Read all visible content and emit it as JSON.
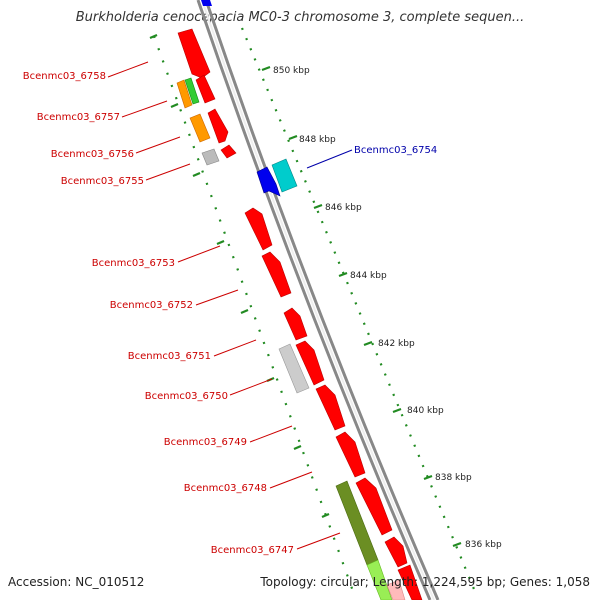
{
  "title": "Burkholderia cenocepacia MC0-3 chromosome 3, complete sequen...",
  "footer": {
    "accession": "Accession: NC_010512",
    "summary": "Topology: circular; Length: 1,224,595 bp; Genes: 1,058"
  },
  "colors": {
    "backbone": "#888888",
    "scale_ticks": "#228b22",
    "label_left": "#cc0000",
    "label_right": "#0000aa",
    "red": "#ff0000",
    "blue": "#0000ee",
    "cyan": "#00cccc",
    "orange": "#ff9900",
    "green": "#33cc33",
    "grey": "#bbbbbb",
    "olive": "#6b8e23",
    "lightgreen": "#99ee55"
  },
  "scale_labels": [
    "850 kbp",
    "848 kbp",
    "846 kbp",
    "844 kbp",
    "842 kbp",
    "840 kbp",
    "838 kbp",
    "836 kbp"
  ],
  "gene_labels": {
    "left": [
      "Bcenmc03_6758",
      "Bcenmc03_6757",
      "Bcenmc03_6756",
      "Bcenmc03_6755",
      "Bcenmc03_6753",
      "Bcenmc03_6752",
      "Bcenmc03_6751",
      "Bcenmc03_6750",
      "Bcenmc03_6749",
      "Bcenmc03_6748",
      "Bcenmc03_6747"
    ],
    "right": [
      "Bcenmc03_6754"
    ]
  }
}
